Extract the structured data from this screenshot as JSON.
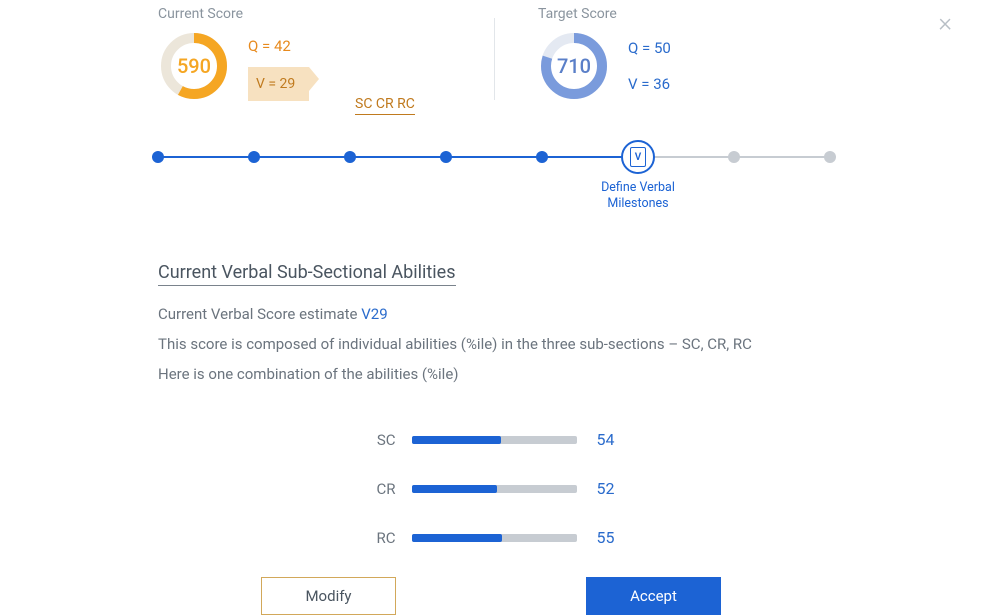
{
  "close_label": "×",
  "current": {
    "title": "Current Score",
    "score": "590",
    "q_label": "Q = 42",
    "v_label": "V = 29",
    "donut_pct": 58,
    "accent": "#f5a623",
    "track": "#ece6da",
    "sub_labels": "SC  CR  RC"
  },
  "target": {
    "title": "Target Score",
    "score": "710",
    "q_label": "Q = 50",
    "v_label": "V = 36",
    "donut_pct": 80,
    "accent": "#7a9bdc",
    "track": "#e4e9f2"
  },
  "progress": {
    "filled_steps": 5,
    "total_steps": 8,
    "active_step_index": 5,
    "active_icon_letter": "V",
    "active_label_line1": "Define Verbal",
    "active_label_line2": "Milestones",
    "line_color_done": "#1c63d4",
    "line_color_todo": "#c7ccd2"
  },
  "section_title": "Current Verbal Sub-Sectional Abilities",
  "body": {
    "line1_prefix": "Current Verbal Score estimate ",
    "line1_est": "V29",
    "line2": "This score is composed of individual abilities (%ile) in the three sub-sections – SC, CR, RC",
    "line3": "Here is one combination of the abilities (%ile)"
  },
  "bars": [
    {
      "label": "SC",
      "value": 54
    },
    {
      "label": "CR",
      "value": 52
    },
    {
      "label": "RC",
      "value": 55
    }
  ],
  "bar_style": {
    "fill_color": "#1c63d4",
    "track_color": "#c7ccd2",
    "value_color": "#2a6bcc"
  },
  "buttons": {
    "modify": "Modify",
    "accept": "Accept"
  }
}
